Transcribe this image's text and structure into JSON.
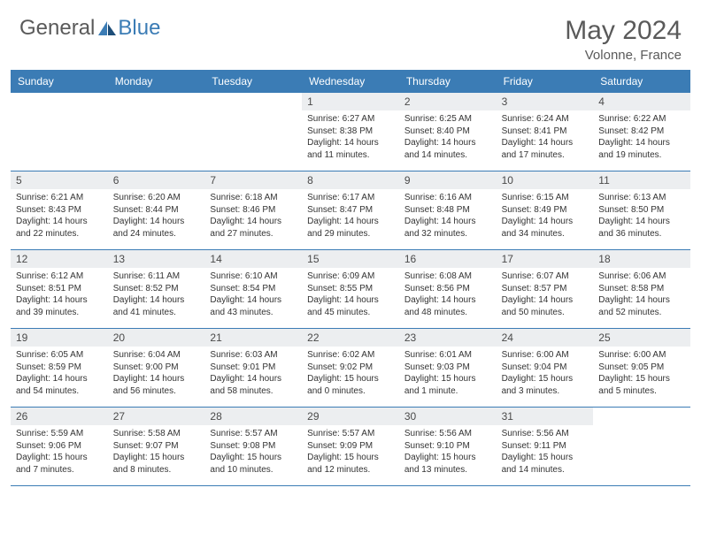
{
  "brand": {
    "part1": "General",
    "part2": "Blue"
  },
  "title": "May 2024",
  "subtitle": "Volonne, France",
  "colors": {
    "header_bar": "#3b7cb5",
    "daynum_bg": "#eceef0",
    "text": "#333333",
    "title_color": "#5a5a5a"
  },
  "day_names": [
    "Sunday",
    "Monday",
    "Tuesday",
    "Wednesday",
    "Thursday",
    "Friday",
    "Saturday"
  ],
  "weeks": [
    [
      {
        "n": "",
        "sr": "",
        "ss": "",
        "dl": ""
      },
      {
        "n": "",
        "sr": "",
        "ss": "",
        "dl": ""
      },
      {
        "n": "",
        "sr": "",
        "ss": "",
        "dl": ""
      },
      {
        "n": "1",
        "sr": "Sunrise: 6:27 AM",
        "ss": "Sunset: 8:38 PM",
        "dl": "Daylight: 14 hours and 11 minutes."
      },
      {
        "n": "2",
        "sr": "Sunrise: 6:25 AM",
        "ss": "Sunset: 8:40 PM",
        "dl": "Daylight: 14 hours and 14 minutes."
      },
      {
        "n": "3",
        "sr": "Sunrise: 6:24 AM",
        "ss": "Sunset: 8:41 PM",
        "dl": "Daylight: 14 hours and 17 minutes."
      },
      {
        "n": "4",
        "sr": "Sunrise: 6:22 AM",
        "ss": "Sunset: 8:42 PM",
        "dl": "Daylight: 14 hours and 19 minutes."
      }
    ],
    [
      {
        "n": "5",
        "sr": "Sunrise: 6:21 AM",
        "ss": "Sunset: 8:43 PM",
        "dl": "Daylight: 14 hours and 22 minutes."
      },
      {
        "n": "6",
        "sr": "Sunrise: 6:20 AM",
        "ss": "Sunset: 8:44 PM",
        "dl": "Daylight: 14 hours and 24 minutes."
      },
      {
        "n": "7",
        "sr": "Sunrise: 6:18 AM",
        "ss": "Sunset: 8:46 PM",
        "dl": "Daylight: 14 hours and 27 minutes."
      },
      {
        "n": "8",
        "sr": "Sunrise: 6:17 AM",
        "ss": "Sunset: 8:47 PM",
        "dl": "Daylight: 14 hours and 29 minutes."
      },
      {
        "n": "9",
        "sr": "Sunrise: 6:16 AM",
        "ss": "Sunset: 8:48 PM",
        "dl": "Daylight: 14 hours and 32 minutes."
      },
      {
        "n": "10",
        "sr": "Sunrise: 6:15 AM",
        "ss": "Sunset: 8:49 PM",
        "dl": "Daylight: 14 hours and 34 minutes."
      },
      {
        "n": "11",
        "sr": "Sunrise: 6:13 AM",
        "ss": "Sunset: 8:50 PM",
        "dl": "Daylight: 14 hours and 36 minutes."
      }
    ],
    [
      {
        "n": "12",
        "sr": "Sunrise: 6:12 AM",
        "ss": "Sunset: 8:51 PM",
        "dl": "Daylight: 14 hours and 39 minutes."
      },
      {
        "n": "13",
        "sr": "Sunrise: 6:11 AM",
        "ss": "Sunset: 8:52 PM",
        "dl": "Daylight: 14 hours and 41 minutes."
      },
      {
        "n": "14",
        "sr": "Sunrise: 6:10 AM",
        "ss": "Sunset: 8:54 PM",
        "dl": "Daylight: 14 hours and 43 minutes."
      },
      {
        "n": "15",
        "sr": "Sunrise: 6:09 AM",
        "ss": "Sunset: 8:55 PM",
        "dl": "Daylight: 14 hours and 45 minutes."
      },
      {
        "n": "16",
        "sr": "Sunrise: 6:08 AM",
        "ss": "Sunset: 8:56 PM",
        "dl": "Daylight: 14 hours and 48 minutes."
      },
      {
        "n": "17",
        "sr": "Sunrise: 6:07 AM",
        "ss": "Sunset: 8:57 PM",
        "dl": "Daylight: 14 hours and 50 minutes."
      },
      {
        "n": "18",
        "sr": "Sunrise: 6:06 AM",
        "ss": "Sunset: 8:58 PM",
        "dl": "Daylight: 14 hours and 52 minutes."
      }
    ],
    [
      {
        "n": "19",
        "sr": "Sunrise: 6:05 AM",
        "ss": "Sunset: 8:59 PM",
        "dl": "Daylight: 14 hours and 54 minutes."
      },
      {
        "n": "20",
        "sr": "Sunrise: 6:04 AM",
        "ss": "Sunset: 9:00 PM",
        "dl": "Daylight: 14 hours and 56 minutes."
      },
      {
        "n": "21",
        "sr": "Sunrise: 6:03 AM",
        "ss": "Sunset: 9:01 PM",
        "dl": "Daylight: 14 hours and 58 minutes."
      },
      {
        "n": "22",
        "sr": "Sunrise: 6:02 AM",
        "ss": "Sunset: 9:02 PM",
        "dl": "Daylight: 15 hours and 0 minutes."
      },
      {
        "n": "23",
        "sr": "Sunrise: 6:01 AM",
        "ss": "Sunset: 9:03 PM",
        "dl": "Daylight: 15 hours and 1 minute."
      },
      {
        "n": "24",
        "sr": "Sunrise: 6:00 AM",
        "ss": "Sunset: 9:04 PM",
        "dl": "Daylight: 15 hours and 3 minutes."
      },
      {
        "n": "25",
        "sr": "Sunrise: 6:00 AM",
        "ss": "Sunset: 9:05 PM",
        "dl": "Daylight: 15 hours and 5 minutes."
      }
    ],
    [
      {
        "n": "26",
        "sr": "Sunrise: 5:59 AM",
        "ss": "Sunset: 9:06 PM",
        "dl": "Daylight: 15 hours and 7 minutes."
      },
      {
        "n": "27",
        "sr": "Sunrise: 5:58 AM",
        "ss": "Sunset: 9:07 PM",
        "dl": "Daylight: 15 hours and 8 minutes."
      },
      {
        "n": "28",
        "sr": "Sunrise: 5:57 AM",
        "ss": "Sunset: 9:08 PM",
        "dl": "Daylight: 15 hours and 10 minutes."
      },
      {
        "n": "29",
        "sr": "Sunrise: 5:57 AM",
        "ss": "Sunset: 9:09 PM",
        "dl": "Daylight: 15 hours and 12 minutes."
      },
      {
        "n": "30",
        "sr": "Sunrise: 5:56 AM",
        "ss": "Sunset: 9:10 PM",
        "dl": "Daylight: 15 hours and 13 minutes."
      },
      {
        "n": "31",
        "sr": "Sunrise: 5:56 AM",
        "ss": "Sunset: 9:11 PM",
        "dl": "Daylight: 15 hours and 14 minutes."
      },
      {
        "n": "",
        "sr": "",
        "ss": "",
        "dl": ""
      }
    ]
  ]
}
